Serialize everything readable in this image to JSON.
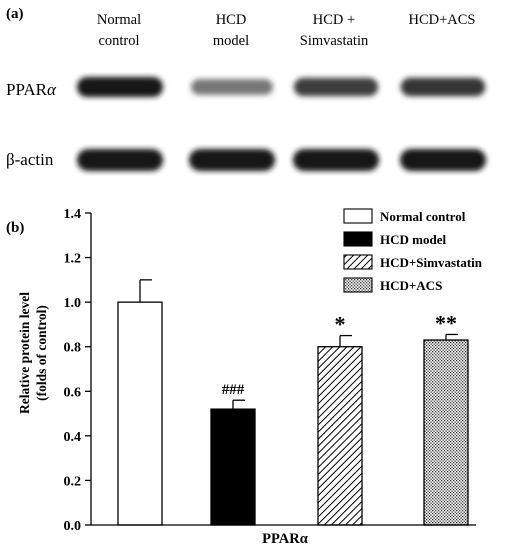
{
  "panel_a": {
    "label": "(a)",
    "lanes": [
      {
        "line1": "Normal",
        "line2": "control"
      },
      {
        "line1": "HCD",
        "line2": "model"
      },
      {
        "line1": "HCD +",
        "line2": "Simvastatin"
      },
      {
        "line1": "HCD+ACS",
        "line2": ""
      }
    ],
    "rows": [
      {
        "label_main": "PPAR",
        "label_greek": "α",
        "intensity": [
          1.0,
          0.52,
          0.8,
          0.83
        ]
      },
      {
        "label_main": "β-actin",
        "label_greek": "",
        "intensity": [
          1.0,
          1.0,
          1.0,
          1.0
        ]
      }
    ]
  },
  "chart_data": {
    "type": "bar",
    "panel_label": "(b)",
    "categories": [
      "Normal control",
      "HCD model",
      "HCD+Simvastatin",
      "HCD+ACS"
    ],
    "values": [
      1.0,
      0.52,
      0.8,
      0.83
    ],
    "errors": [
      0.1,
      0.04,
      0.05,
      0.025
    ],
    "annotations": [
      "",
      "###",
      "*",
      "**"
    ],
    "fills": [
      "white",
      "black",
      "diagonal-hatch",
      "dots"
    ],
    "xlabel": "PPARα",
    "ylabel_line1": "Relative protein level",
    "ylabel_line2": "(folds of control)",
    "ylim": [
      0.0,
      1.4
    ],
    "yticks": [
      "0.0",
      "0.2",
      "0.4",
      "0.6",
      "0.8",
      "1.0",
      "1.2",
      "1.4"
    ],
    "legend_position": "top-right",
    "legend": [
      "Normal control",
      "HCD model",
      "HCD+Simvastatin",
      "HCD+ACS"
    ]
  }
}
